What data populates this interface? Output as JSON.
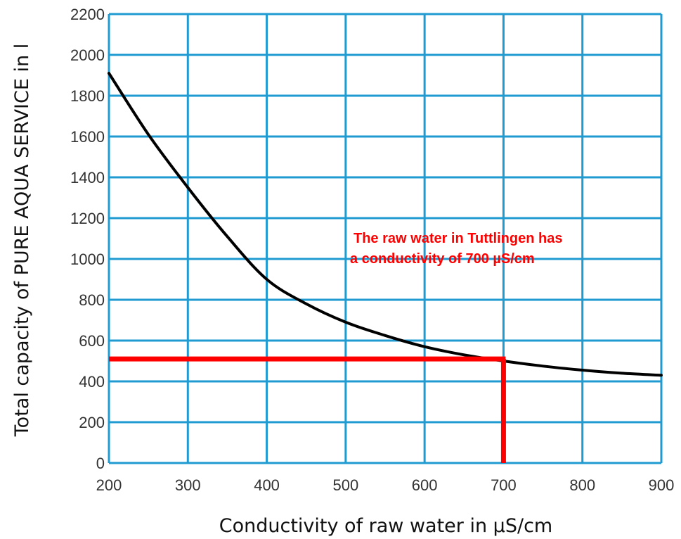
{
  "chart_data": {
    "type": "line",
    "xlabel": "Conductivity of raw water in µS/cm",
    "ylabel": "Total capacity of PURE AQUA SERVICE in l",
    "xlim": [
      200,
      900
    ],
    "ylim": [
      0,
      2200
    ],
    "x_ticks": [
      200,
      300,
      400,
      500,
      600,
      700,
      800,
      900
    ],
    "y_ticks": [
      0,
      200,
      400,
      600,
      800,
      1000,
      1200,
      1400,
      1600,
      1800,
      2000,
      2200
    ],
    "grid": true,
    "series": [
      {
        "x": [
          200,
          250,
          300,
          350,
          400,
          450,
          500,
          550,
          600,
          650,
          700,
          750,
          800,
          850,
          900
        ],
        "y": [
          1910,
          1610,
          1350,
          1110,
          900,
          780,
          690,
          625,
          570,
          530,
          500,
          475,
          455,
          440,
          430
        ],
        "color": "#000000"
      }
    ],
    "reference": {
      "x": 700,
      "y": 510,
      "color": "#ff0000"
    },
    "annotation": {
      "lines": [
        "The raw water in Tuttlingen has",
        "a conductivity of 700 µS/cm"
      ],
      "color": "#ff0000"
    },
    "grid_color": "#1f9bd1"
  }
}
